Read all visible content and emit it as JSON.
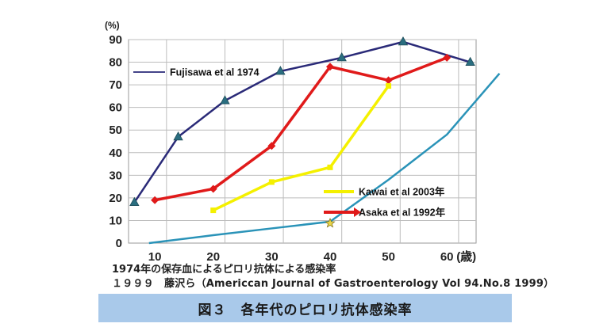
{
  "chart_data": {
    "type": "line",
    "y_unit": "(%)",
    "x_unit": "(歳)",
    "x_ticks": [
      10,
      20,
      30,
      40,
      50,
      60
    ],
    "y_ticks": [
      0,
      10,
      20,
      30,
      40,
      50,
      60,
      70,
      80,
      90
    ],
    "xlim": [
      5.5,
      65
    ],
    "ylim": [
      0,
      90
    ],
    "grid": true,
    "series": [
      {
        "name": "Fujisawa et al 1974",
        "color": "#2a2a78",
        "marker": "triangle",
        "marker_color": "#2a6e80",
        "x": [
          6.5,
          14,
          22,
          31.5,
          42,
          52.5,
          64
        ],
        "y": [
          18,
          47,
          63,
          76,
          82,
          89,
          80
        ]
      },
      {
        "name": "Asaka et al 1992年",
        "color": "#e01a1a",
        "marker": "diamond",
        "x": [
          10,
          20,
          30,
          40,
          50,
          60
        ],
        "y": [
          19,
          24,
          43,
          78,
          72,
          82
        ]
      },
      {
        "name": "Kawai et al 2003年",
        "color": "#f4f000",
        "marker": "square",
        "x": [
          20,
          30,
          40,
          50
        ],
        "y": [
          14.5,
          27,
          33.5,
          69.5
        ]
      },
      {
        "name": "",
        "color": "#2a93b8",
        "marker": "none",
        "x": [
          9,
          20,
          30,
          40,
          50,
          60,
          69
        ],
        "y": [
          0,
          3.5,
          6.5,
          9.5,
          28,
          48,
          75
        ]
      }
    ],
    "legend": [
      {
        "label": "Fujisawa et al 1974",
        "color": "#2a2a78",
        "placement": "top-left"
      },
      {
        "label": "Kawai et al 2003年",
        "color": "#f4f000",
        "placement": "lower-right"
      },
      {
        "label": "Asaka et al 1992年",
        "color": "#e01a1a",
        "placement": "lower-right"
      }
    ]
  },
  "caption": {
    "line1": "1974年の保存血によるピロリ抗体による感染率",
    "line2": "１９９９　藤沢ら（Americcan Journal of Gastroenterology Vol 94.No.8 1999）"
  },
  "figure_title": "図３　各年代のピロリ抗体感染率"
}
